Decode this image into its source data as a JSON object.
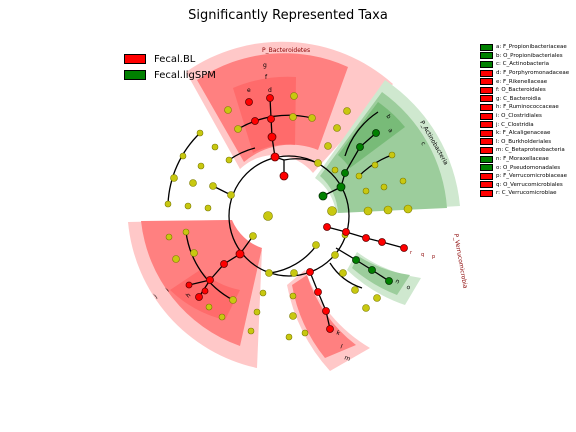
{
  "title": "Significantly Represented Taxa",
  "colors": {
    "fecal_bl": "#ff0000",
    "fecal_ligspm": "#008000",
    "node_neutral": "#c8c810"
  },
  "groups": [
    {
      "label": "Fecal.BL",
      "color": "#ff0000"
    },
    {
      "label": "Fecal.ligSPM",
      "color": "#008000"
    }
  ],
  "taxa_legend": [
    {
      "label": "a: F_Propionibacteriaceae",
      "color": "#008000"
    },
    {
      "label": "b: O_Propionibacteriales",
      "color": "#008000"
    },
    {
      "label": "c: C_Actinobacteria",
      "color": "#008000"
    },
    {
      "label": "d: F_Porphyromonadaceae",
      "color": "#ff0000"
    },
    {
      "label": "e: F_Rikenellaceae",
      "color": "#ff0000"
    },
    {
      "label": "f: O_Bacteroidales",
      "color": "#ff0000"
    },
    {
      "label": "g: C_Bacteroidia",
      "color": "#ff0000"
    },
    {
      "label": "h: F_Ruminococcaceae",
      "color": "#ff0000"
    },
    {
      "label": "i: O_Clostridiales",
      "color": "#ff0000"
    },
    {
      "label": "j: C_Clostridia",
      "color": "#ff0000"
    },
    {
      "label": "k: F_Alcaligenaceae",
      "color": "#ff0000"
    },
    {
      "label": "l: O_Burkholderiales",
      "color": "#ff0000"
    },
    {
      "label": "m: C_Betaproteobacteria",
      "color": "#ff0000"
    },
    {
      "label": "n: F_Moraxellaceae",
      "color": "#008000"
    },
    {
      "label": "o: O_Pseudomonadales",
      "color": "#008000"
    },
    {
      "label": "p: F_Verrucomicrobiaceae",
      "color": "#ff0000"
    },
    {
      "label": "q: O_Verrucomicrobiales",
      "color": "#ff0000"
    },
    {
      "label": "r: C_Verrucomicrobiae",
      "color": "#ff0000"
    }
  ],
  "clade_labels": {
    "bacteroidetes": "P_Bacteroidetes",
    "actinobacteria": "P_Actinobacteria",
    "verrucomicrobia": "P_Verrucomicrobia",
    "g": "g",
    "f": "f",
    "e": "e",
    "d": "d",
    "c": "c",
    "b": "b",
    "a": "a",
    "p": "p",
    "q": "q",
    "r": "r",
    "o": "o",
    "n": "n",
    "j": "j",
    "i": "i",
    "h": "h",
    "m": "m",
    "l": "l",
    "k": "k"
  }
}
